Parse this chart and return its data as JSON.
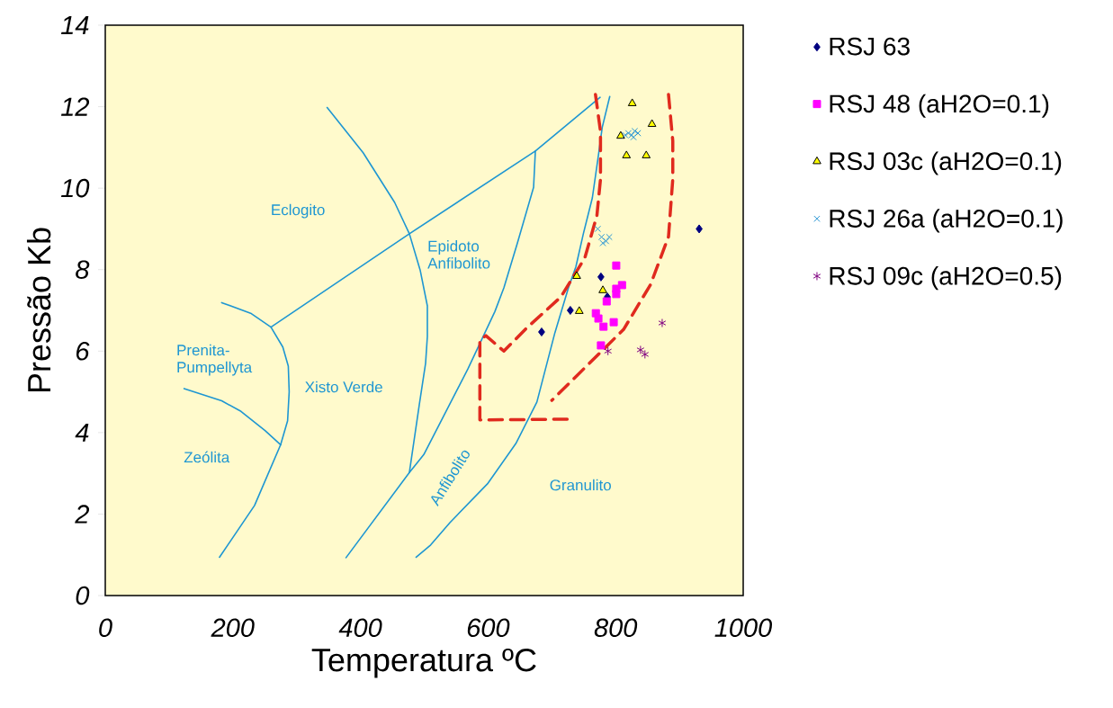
{
  "chart_data": {
    "type": "scatter",
    "xlabel": "Temperatura ºC",
    "ylabel": "Pressão Kb",
    "xlim": [
      0,
      1000
    ],
    "ylim": [
      0,
      14
    ],
    "xticks": [
      0,
      200,
      400,
      600,
      800,
      1000
    ],
    "yticks": [
      0,
      2,
      4,
      6,
      8,
      10,
      12,
      14
    ],
    "legend": "right",
    "series": [
      {
        "name": "RSJ 63",
        "color": "#000080",
        "marker": "diamond",
        "x": [
          684,
          729,
          777,
          787,
          931
        ],
        "values": [
          6.47,
          7.0,
          7.82,
          7.33,
          9.0
        ]
      },
      {
        "name": "RSJ 48 (aH2O=0.1)",
        "color": "#ff00ff",
        "marker": "square",
        "x": [
          801,
          810,
          801,
          801,
          786,
          769,
          773,
          781,
          797,
          777
        ],
        "values": [
          8.1,
          7.62,
          7.53,
          7.4,
          7.22,
          6.93,
          6.8,
          6.6,
          6.71,
          6.14
        ]
      },
      {
        "name": "RSJ 03c (aH2O=0.1)",
        "color": "#ffff00",
        "marker": "triangle",
        "x": [
          826,
          857,
          808,
          817,
          848,
          739,
          780,
          743
        ],
        "values": [
          12.08,
          11.57,
          11.28,
          10.8,
          10.8,
          7.84,
          7.49,
          6.98
        ]
      },
      {
        "name": "RSJ 26a (aH2O=0.1)",
        "color": "#2a96d4",
        "marker": "cross",
        "x": [
          815,
          820,
          825,
          830,
          835,
          828,
          772,
          778,
          785,
          790,
          780
        ],
        "values": [
          11.3,
          11.35,
          11.3,
          11.4,
          11.35,
          11.25,
          9.0,
          8.8,
          8.7,
          8.8,
          8.65
        ]
      },
      {
        "name": "RSJ 09c (aH2O=0.5)",
        "color": "#800080",
        "marker": "cross",
        "x": [
          873,
          788,
          839,
          846
        ],
        "values": [
          6.69,
          6.0,
          6.03,
          5.92
        ]
      },
      {
        "type": "line",
        "color": "#1e96d2",
        "line_style": "solid",
        "x": [
          182.5,
          227.9,
          259.7,
          278.3,
          286.9,
          288.3,
          285.8,
          274.8,
          234.0,
          179.0
        ],
        "values": [
          7.19,
          6.93,
          6.59,
          6.1,
          5.63,
          5.0,
          4.29,
          3.7,
          2.21,
          0.94
        ]
      },
      {
        "type": "line",
        "color": "#1e96d2",
        "line_style": "solid",
        "x": [
          123.6,
          182.5,
          212.8,
          250.5,
          274.8
        ],
        "values": [
          5.08,
          4.78,
          4.52,
          4.05,
          3.7
        ]
      },
      {
        "type": "line",
        "color": "#1e96d2",
        "line_style": "solid",
        "x": [
          259.7,
          476.7,
          674.2,
          775.7
        ],
        "values": [
          6.59,
          8.88,
          10.91,
          12.23
        ]
      },
      {
        "type": "line",
        "color": "#1e96d2",
        "line_style": "solid",
        "x": [
          674.2,
          671.4,
          646.0,
          624.8,
          610.7,
          568.4,
          499.3,
          476.7,
          377.4
        ],
        "values": [
          10.91,
          10.02,
          8.65,
          7.55,
          6.97,
          5.56,
          3.46,
          3.02,
          0.93
        ]
      },
      {
        "type": "line",
        "color": "#1e96d2",
        "line_style": "solid",
        "x": [
          347.8,
          404.2,
          453.6,
          476.7,
          493.6,
          504.9,
          504.9,
          502.1,
          492.2,
          476.7
        ],
        "values": [
          11.98,
          10.87,
          9.65,
          8.88,
          7.99,
          7.11,
          6.36,
          5.7,
          4.68,
          3.02
        ]
      },
      {
        "type": "line",
        "color": "#1e96d2",
        "line_style": "solid",
        "x": [
          790.8,
          779.0,
          772.9,
          763.5,
          749.4,
          737.7,
          726.0,
          704.8,
          676.6,
          643.6,
          599.0,
          540.2,
          510.0,
          487.3
        ],
        "values": [
          12.25,
          11.49,
          10.79,
          9.76,
          8.88,
          8.07,
          7.55,
          6.45,
          4.75,
          3.73,
          2.74,
          1.79,
          1.24,
          0.94
        ]
      },
      {
        "type": "line",
        "color": "#e02a1e",
        "line_style": "dashed",
        "x": [
          768.4,
          776.3,
          776.3,
          770.7,
          751.8,
          714.2,
          660.1,
          624.8,
          596.6,
          587.2,
          587.2,
          733.0
        ],
        "values": [
          12.3,
          11.39,
          10.22,
          9.33,
          8.29,
          7.33,
          6.56,
          6.0,
          6.38,
          6.27,
          4.31,
          4.33
        ]
      },
      {
        "type": "line",
        "color": "#e02a1e",
        "line_style": "dashed",
        "x": [
          882.9,
          889.6,
          889.6,
          882.9,
          854.7,
          812.4,
          700.0
        ],
        "values": [
          12.3,
          11.16,
          10.22,
          8.81,
          7.63,
          6.53,
          4.79
        ]
      }
    ],
    "annotations": [
      "Eclogito",
      "Epidoto Anfibolito",
      "Prenita-Pumpellyta",
      "Xisto Verde",
      "Zeólita",
      "Anfibolito",
      "Granulito"
    ]
  }
}
